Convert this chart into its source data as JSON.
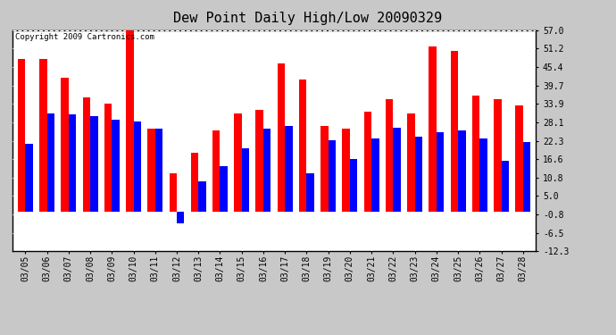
{
  "title": "Dew Point Daily High/Low 20090329",
  "copyright": "Copyright 2009 Cartronics.com",
  "dates": [
    "03/05",
    "03/06",
    "03/07",
    "03/08",
    "03/09",
    "03/10",
    "03/11",
    "03/12",
    "03/13",
    "03/14",
    "03/15",
    "03/16",
    "03/17",
    "03/18",
    "03/19",
    "03/20",
    "03/21",
    "03/22",
    "03/23",
    "03/24",
    "03/25",
    "03/26",
    "03/27",
    "03/28"
  ],
  "highs": [
    48.0,
    48.0,
    42.0,
    36.0,
    34.0,
    57.0,
    26.0,
    12.0,
    18.5,
    25.5,
    31.0,
    32.0,
    46.5,
    41.5,
    27.0,
    26.0,
    31.5,
    35.5,
    31.0,
    52.0,
    50.5,
    36.5,
    35.5,
    33.5
  ],
  "lows": [
    21.5,
    31.0,
    30.5,
    30.0,
    29.0,
    28.5,
    26.0,
    -3.5,
    9.5,
    14.5,
    20.0,
    26.0,
    27.0,
    12.0,
    22.5,
    16.5,
    23.0,
    26.5,
    23.5,
    25.0,
    25.5,
    23.0,
    16.0,
    22.0
  ],
  "ylim": [
    -12.3,
    57.0
  ],
  "yticks": [
    -12.3,
    -6.5,
    -0.8,
    5.0,
    10.8,
    16.6,
    22.3,
    28.1,
    33.9,
    39.7,
    45.4,
    51.2,
    57.0
  ],
  "bar_width": 0.35,
  "high_color": "#ff0000",
  "low_color": "#0000ff",
  "bg_color": "#c8c8c8",
  "plot_bg_color": "#ffffff",
  "grid_color": "#ffffff",
  "title_fontsize": 11,
  "copyright_fontsize": 6.5,
  "tick_fontsize": 7
}
